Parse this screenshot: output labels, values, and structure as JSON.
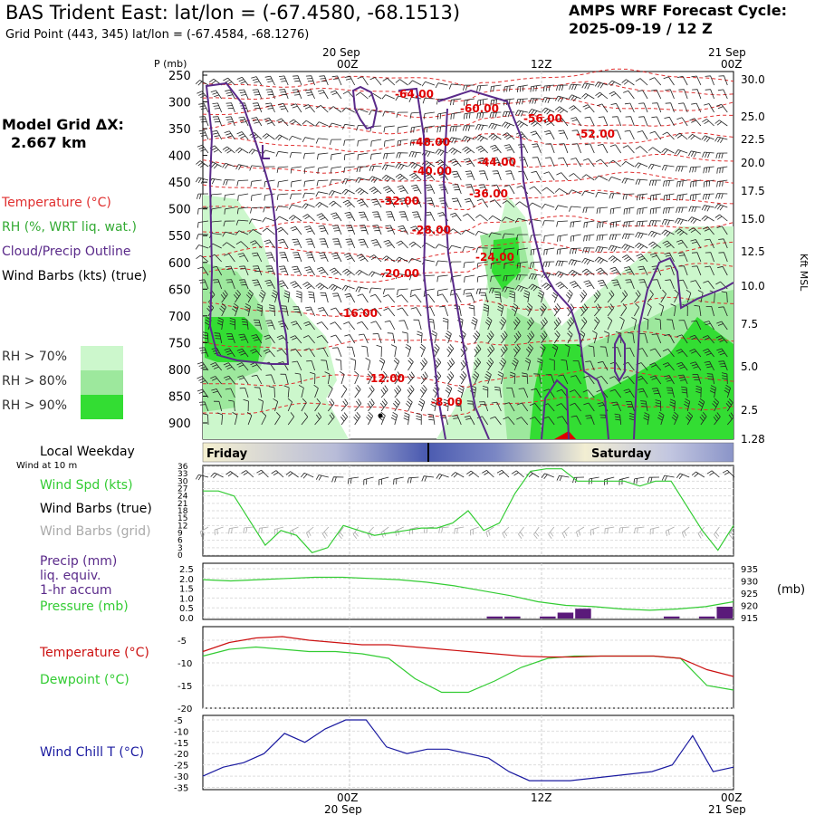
{
  "header": {
    "title": "BAS Trident East:  lat/lon = (-67.4580, -68.1513)",
    "subtitle": "Grid Point (443, 345) lat/lon = (-67.4584, -68.1276)",
    "cycle_line1": "AMPS WRF Forecast Cycle:",
    "cycle_line2": "2025-09-19 / 12  Z"
  },
  "sidebar": {
    "model_grid_label": "Model Grid ΔX:",
    "model_grid_value": "2.667 km",
    "legend_temperature": "Temperature (°C)",
    "legend_rh": "RH (%, WRT liq. wat.)",
    "legend_cloud": "Cloud/Precip Outline",
    "legend_wind": "Wind Barbs (kts) (true)",
    "rh_levels": [
      "RH > 70%",
      "RH > 80%",
      "RH > 90%"
    ],
    "local_weekday": "Local Weekday",
    "wind_at_10m": "Wind at 10 m",
    "wind_spd": "Wind Spd (kts)",
    "wind_barbs_true": "Wind Barbs (true)",
    "wind_barbs_grid": "Wind Barbs (grid)",
    "precip_l1": "Precip (mm)",
    "precip_l2": "liq. equiv.",
    "precip_l3": "1-hr accum",
    "pressure": "Pressure (mb)",
    "temperature": "Temperature (°C)",
    "dewpoint": "Dewpoint (°C)",
    "wind_chill": "Wind Chill T (°C)"
  },
  "colors": {
    "temperature": "#e03030",
    "rh70": "#ccf7cc",
    "rh80": "#9de89d",
    "rh90": "#33dd33",
    "cloud": "#5a2a8a",
    "green_line": "#33cc33",
    "red_line": "#cc1111",
    "wind_chill": "#1a1aa0",
    "precip": "#5a1a7a",
    "gray_barbs": "#aaaaaa"
  },
  "chart_data": [
    {
      "type": "heatmap",
      "name": "cross-section",
      "x_top_labels": [
        "20 Sep",
        "21 Sep"
      ],
      "x_time_labels": [
        "00Z",
        "12Z",
        "00Z"
      ],
      "y_left_title": "P (mb)",
      "y_left_ticks": [
        250,
        300,
        350,
        400,
        450,
        500,
        550,
        600,
        650,
        700,
        750,
        800,
        850,
        900
      ],
      "y_right_ticks": [
        "30.0",
        "25.0",
        "22.5",
        "20.0",
        "17.5",
        "15.0",
        "12.5",
        "10.0",
        "7.5",
        "5.0",
        "2.5",
        "1.28"
      ],
      "y_right_title": "Kft MSL",
      "temperature_contour_labels": [
        "-64.00",
        "-60.00",
        "-56.00",
        "-52.00",
        "-48.00",
        "-44.00",
        "-40.00",
        "-36.00",
        "-32.00",
        "-28.00",
        "-24.00",
        "-20.00",
        "-16.00",
        "-12.00",
        "-8.00"
      ]
    },
    {
      "type": "line",
      "name": "wind-speed",
      "y_ticks": [
        0,
        3,
        6,
        9,
        12,
        15,
        18,
        21,
        24,
        27,
        30,
        33,
        36
      ],
      "series": [
        {
          "color": "green",
          "values": [
            26,
            26,
            24,
            14,
            4,
            10,
            8,
            1,
            3,
            12,
            10,
            8,
            9,
            10,
            11,
            11,
            13,
            18,
            10,
            13,
            25,
            34,
            35,
            35,
            30,
            30,
            30,
            30,
            28,
            30,
            30,
            20,
            10,
            2,
            12
          ]
        }
      ]
    },
    {
      "type": "line",
      "name": "precip-pressure",
      "y_left_ticks": [
        "0.0",
        "0.5",
        "1.0",
        "1.5",
        "2.0",
        "2.5"
      ],
      "y_right_ticks": [
        915,
        920,
        925,
        930,
        935
      ],
      "y_right_title": "(mb)",
      "pressure": [
        930.5,
        930.0,
        930.5,
        931.0,
        931.5,
        931.5,
        931.0,
        930.5,
        929.5,
        928.0,
        926.0,
        924.0,
        921.5,
        920.0,
        919.5,
        918.5,
        918.0,
        918.5,
        919.5,
        921.5
      ],
      "precip_bars": [
        0,
        0,
        0,
        0,
        0,
        0,
        0,
        0,
        0,
        0,
        0,
        0,
        0,
        0,
        0,
        0,
        0.1,
        0.1,
        0,
        0.1,
        0.3,
        0.5,
        0,
        0,
        0,
        0,
        0.1,
        0,
        0.1,
        0.6
      ]
    },
    {
      "type": "line",
      "name": "temperature-dewpoint",
      "y_ticks": [
        -5,
        -10,
        -15,
        -20
      ],
      "series": [
        {
          "color": "red",
          "values": [
            -7.5,
            -5.5,
            -4.5,
            -4.2,
            -5.0,
            -5.5,
            -6.0,
            -6.0,
            -6.5,
            -7.0,
            -7.5,
            -8.0,
            -8.5,
            -8.7,
            -8.7,
            -8.5,
            -8.5,
            -8.5,
            -9.0,
            -11.5,
            -13.0
          ]
        },
        {
          "color": "green",
          "values": [
            -8.5,
            -7.0,
            -6.5,
            -7.0,
            -7.5,
            -7.5,
            -8.0,
            -9.0,
            -13.5,
            -16.5,
            -16.5,
            -14.0,
            -11.0,
            -9.0,
            -8.5,
            -8.5,
            -8.5,
            -8.5,
            -9.0,
            -15.0,
            -16.0
          ]
        }
      ]
    },
    {
      "type": "line",
      "name": "wind-chill",
      "y_ticks": [
        -5,
        -10,
        -15,
        -20,
        -25,
        -30,
        -35
      ],
      "x_time_labels": [
        "00Z",
        "12Z",
        "00Z"
      ],
      "x_date_labels": [
        "20 Sep",
        "21 Sep"
      ],
      "series": [
        {
          "color": "blue",
          "values": [
            -30,
            -26,
            -24,
            -20,
            -11,
            -15,
            -9,
            -5,
            -5,
            -17,
            -20,
            -18,
            -18,
            -20,
            -22,
            -28,
            -32,
            -32,
            -32,
            -31,
            -30,
            -29,
            -28,
            -25,
            -12,
            -28,
            -26
          ]
        }
      ]
    }
  ],
  "weekday_bar": {
    "left_day": "Friday",
    "right_day": "Saturday"
  }
}
